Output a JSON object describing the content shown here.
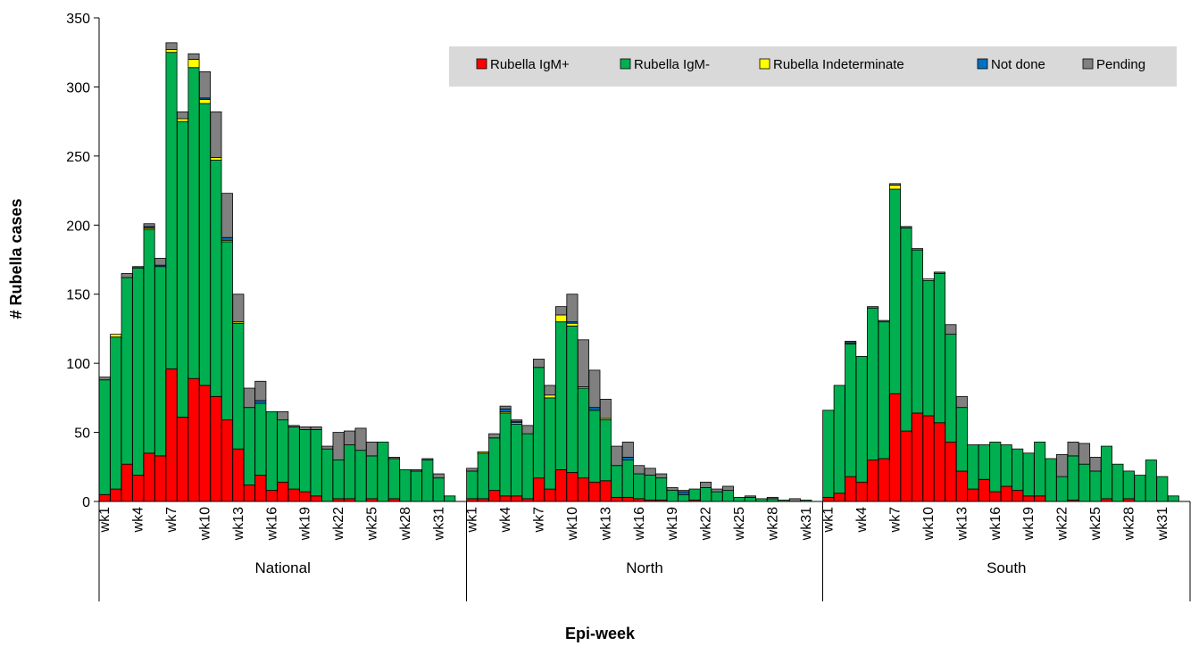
{
  "chart_data": {
    "type": "bar",
    "stacked": true,
    "xlabel": "Epi-week",
    "ylabel": "# Rubella cases",
    "ylim": [
      0,
      350
    ],
    "yticks": [
      0,
      50,
      100,
      150,
      200,
      250,
      300,
      350
    ],
    "grid": false,
    "legend_position": "top-right",
    "colors": {
      "Rubella IgM+": "#ff0000",
      "Rubella IgM-": "#00b050",
      "Rubella Indeterminate": "#ffff00",
      "Not done": "#0070c0",
      "Pending": "#808080"
    },
    "series_names": [
      "Rubella IgM+",
      "Rubella IgM-",
      "Rubella Indeterminate",
      "Not done",
      "Pending"
    ],
    "week_labels": [
      "wk1",
      "wk4",
      "wk7",
      "wk10",
      "wk13",
      "wk16",
      "wk19",
      "wk22",
      "wk25",
      "wk28",
      "wk31"
    ],
    "groups": [
      {
        "name": "National",
        "weeks": 32,
        "series": [
          {
            "name": "Rubella IgM+",
            "values": [
              5,
              9,
              27,
              19,
              35,
              33,
              96,
              61,
              89,
              84,
              76,
              59,
              38,
              12,
              19,
              8,
              14,
              9,
              7,
              4,
              0,
              2,
              2,
              0,
              2,
              0,
              2,
              0,
              0,
              0,
              0,
              0
            ]
          },
          {
            "name": "Rubella IgM-",
            "values": [
              83,
              110,
              135,
              150,
              162,
              137,
              229,
              214,
              225,
              204,
              171,
              129,
              91,
              56,
              52,
              57,
              45,
              45,
              45,
              48,
              38,
              28,
              39,
              37,
              31,
              43,
              29,
              23,
              22,
              30,
              17,
              4
            ]
          },
          {
            "name": "Rubella Indeterminate",
            "values": [
              0,
              2,
              0,
              0,
              1,
              0,
              2,
              2,
              6,
              3,
              2,
              1,
              1,
              0,
              0,
              0,
              0,
              0,
              0,
              0,
              0,
              0,
              0,
              0,
              0,
              0,
              0,
              0,
              0,
              0,
              0,
              0
            ]
          },
          {
            "name": "Not done",
            "values": [
              0,
              0,
              0,
              1,
              1,
              1,
              0,
              0,
              0,
              1,
              0,
              2,
              0,
              0,
              2,
              0,
              0,
              0,
              0,
              0,
              0,
              0,
              0,
              0,
              0,
              0,
              0,
              0,
              0,
              0,
              0,
              0
            ]
          },
          {
            "name": "Pending",
            "values": [
              2,
              0,
              3,
              0,
              2,
              5,
              5,
              5,
              4,
              19,
              33,
              32,
              20,
              14,
              14,
              0,
              6,
              1,
              2,
              2,
              2,
              20,
              10,
              16,
              10,
              0,
              1,
              0,
              1,
              1,
              3,
              0
            ]
          }
        ]
      },
      {
        "name": "North",
        "weeks": 31,
        "series": [
          {
            "name": "Rubella IgM+",
            "values": [
              2,
              2,
              8,
              4,
              4,
              2,
              17,
              9,
              23,
              21,
              17,
              14,
              15,
              3,
              3,
              2,
              1,
              1,
              0,
              0,
              1,
              0,
              0,
              0,
              0,
              0,
              0,
              0,
              0,
              0,
              0
            ]
          },
          {
            "name": "Rubella IgM-",
            "values": [
              20,
              33,
              38,
              60,
              52,
              47,
              80,
              66,
              107,
              106,
              65,
              52,
              44,
              23,
              27,
              18,
              18,
              16,
              8,
              5,
              8,
              10,
              7,
              8,
              3,
              3,
              2,
              2,
              1,
              0,
              1
            ]
          },
          {
            "name": "Rubella Indeterminate",
            "values": [
              0,
              1,
              0,
              1,
              1,
              0,
              0,
              2,
              5,
              2,
              1,
              0,
              1,
              0,
              0,
              0,
              0,
              0,
              0,
              0,
              0,
              0,
              0,
              0,
              0,
              0,
              0,
              0,
              0,
              0,
              0
            ]
          },
          {
            "name": "Not done",
            "values": [
              0,
              0,
              0,
              2,
              1,
              0,
              0,
              0,
              0,
              1,
              0,
              2,
              0,
              0,
              2,
              0,
              0,
              0,
              0,
              2,
              0,
              0,
              0,
              0,
              0,
              0,
              0,
              0,
              0,
              0,
              0
            ]
          },
          {
            "name": "Pending",
            "values": [
              2,
              0,
              3,
              2,
              1,
              6,
              6,
              7,
              6,
              20,
              34,
              27,
              14,
              14,
              11,
              6,
              5,
              3,
              2,
              1,
              0,
              4,
              2,
              3,
              0,
              1,
              0,
              1,
              0,
              2,
              0
            ]
          }
        ]
      },
      {
        "name": "South",
        "weeks": 32,
        "series": [
          {
            "name": "Rubella IgM+",
            "values": [
              3,
              6,
              18,
              14,
              30,
              31,
              78,
              51,
              64,
              62,
              57,
              43,
              22,
              9,
              16,
              7,
              11,
              8,
              4,
              4,
              0,
              0,
              1,
              0,
              0,
              2,
              0,
              2,
              0,
              0,
              0,
              0
            ]
          },
          {
            "name": "Rubella IgM-",
            "values": [
              63,
              78,
              96,
              91,
              110,
              99,
              148,
              147,
              118,
              98,
              108,
              78,
              46,
              32,
              25,
              36,
              30,
              30,
              31,
              39,
              31,
              18,
              32,
              27,
              22,
              38,
              27,
              20,
              19,
              30,
              18,
              4
            ]
          },
          {
            "name": "Rubella Indeterminate",
            "values": [
              0,
              0,
              0,
              0,
              0,
              0,
              3,
              0,
              0,
              1,
              0,
              0,
              0,
              0,
              0,
              0,
              0,
              0,
              0,
              0,
              0,
              0,
              0,
              0,
              0,
              0,
              0,
              0,
              0,
              0,
              0,
              0
            ]
          },
          {
            "name": "Not done",
            "values": [
              0,
              0,
              1,
              0,
              0,
              0,
              0,
              0,
              0,
              0,
              0,
              0,
              0,
              0,
              0,
              0,
              0,
              0,
              0,
              0,
              0,
              0,
              0,
              0,
              0,
              0,
              0,
              0,
              0,
              0,
              0,
              0
            ]
          },
          {
            "name": "Pending",
            "values": [
              0,
              0,
              1,
              0,
              1,
              1,
              1,
              1,
              1,
              0,
              1,
              7,
              8,
              0,
              0,
              0,
              0,
              0,
              0,
              0,
              0,
              16,
              10,
              15,
              10,
              0,
              0,
              0,
              0,
              0,
              0,
              0
            ]
          }
        ]
      }
    ]
  }
}
